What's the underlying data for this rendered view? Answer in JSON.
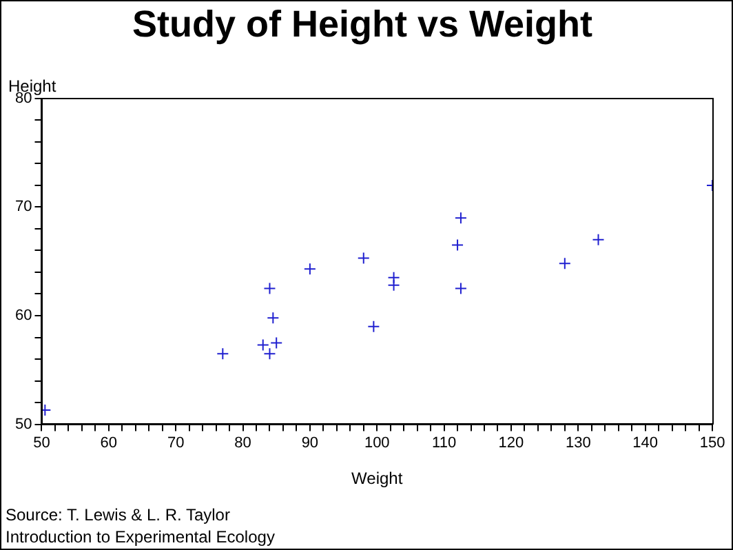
{
  "chart_data": {
    "type": "scatter",
    "title": "Study of Height vs Weight",
    "xlabel": "Weight",
    "ylabel": "Height",
    "annotations": [
      "Source: T. Lewis & L. R. Taylor",
      "Introduction to Experimental Ecology"
    ],
    "x": [
      50.5,
      77,
      83,
      84,
      85,
      84.5,
      84,
      90,
      98,
      99.5,
      102.5,
      102.5,
      112,
      112.5,
      112.5,
      128,
      133,
      150
    ],
    "series": [
      {
        "color": "#2020d0",
        "values": [
          51.3,
          56.5,
          57.3,
          56.5,
          57.5,
          59.8,
          62.5,
          64.3,
          65.3,
          59,
          63.5,
          62.8,
          66.5,
          69,
          62.5,
          64.8,
          67,
          72
        ]
      }
    ],
    "marker": "cross",
    "grid": false,
    "legend": false,
    "xlim": [
      50,
      150
    ],
    "ylim": [
      50,
      80
    ],
    "xticks": [
      50,
      {
        "value": 52,
        "label": null
      },
      {
        "value": 54,
        "label": null
      },
      {
        "value": 56,
        "label": null
      },
      {
        "value": 58,
        "label": null
      },
      60,
      {
        "value": 62,
        "label": null
      },
      {
        "value": 64,
        "label": null
      },
      {
        "value": 66,
        "label": null
      },
      {
        "value": 68,
        "label": null
      },
      70,
      {
        "value": 72,
        "label": null
      },
      {
        "value": 74,
        "label": null
      },
      {
        "value": 76,
        "label": null
      },
      {
        "value": 78,
        "label": null
      },
      80,
      {
        "value": 82,
        "label": null
      },
      {
        "value": 84,
        "label": null
      },
      {
        "value": 86,
        "label": null
      },
      {
        "value": 88,
        "label": null
      },
      90,
      {
        "value": 92,
        "label": null
      },
      {
        "value": 94,
        "label": null
      },
      {
        "value": 96,
        "label": null
      },
      {
        "value": 98,
        "label": null
      },
      100,
      {
        "value": 102,
        "label": null
      },
      {
        "value": 104,
        "label": null
      },
      {
        "value": 106,
        "label": null
      },
      {
        "value": 108,
        "label": null
      },
      110,
      {
        "value": 112,
        "label": null
      },
      {
        "value": 114,
        "label": null
      },
      {
        "value": 116,
        "label": null
      },
      {
        "value": 118,
        "label": null
      },
      120,
      {
        "value": 122,
        "label": null
      },
      {
        "value": 124,
        "label": null
      },
      {
        "value": 126,
        "label": null
      },
      {
        "value": 128,
        "label": null
      },
      130,
      {
        "value": 132,
        "label": null
      },
      {
        "value": 134,
        "label": null
      },
      {
        "value": 136,
        "label": null
      },
      {
        "value": 138,
        "label": null
      },
      140,
      {
        "value": 142,
        "label": null
      },
      {
        "value": 144,
        "label": null
      },
      {
        "value": 146,
        "label": null
      },
      {
        "value": 148,
        "label": null
      },
      150
    ],
    "yticks": [
      50,
      {
        "value": 52,
        "label": null
      },
      {
        "value": 54,
        "label": null
      },
      {
        "value": 56,
        "label": null
      },
      {
        "value": 58,
        "label": null
      },
      60,
      {
        "value": 62,
        "label": null
      },
      {
        "value": 64,
        "label": null
      },
      {
        "value": 66,
        "label": null
      },
      {
        "value": 68,
        "label": null
      },
      70,
      {
        "value": 72,
        "label": null
      },
      {
        "value": 74,
        "label": null
      },
      {
        "value": 76,
        "label": null
      },
      {
        "value": 78,
        "label": null
      },
      80
    ]
  }
}
